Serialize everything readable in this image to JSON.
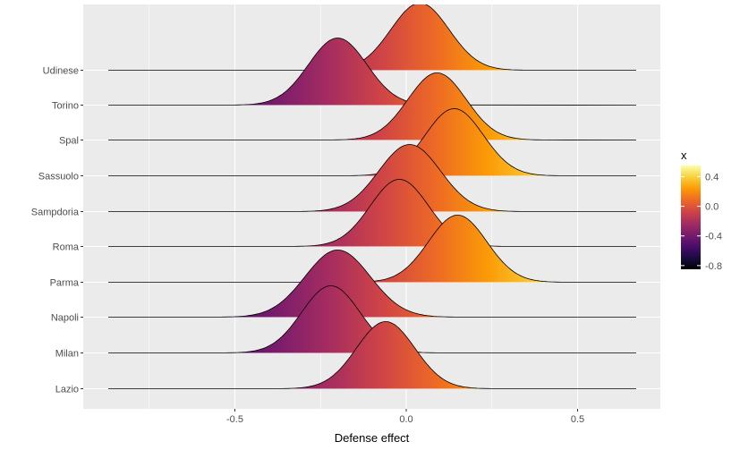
{
  "chart_data": {
    "type": "ridgeline",
    "xlabel": "Defense effect",
    "ylabel": "",
    "xlim": [
      -0.95,
      0.75
    ],
    "x_ticks": [
      -0.5,
      0.0,
      0.5
    ],
    "x_tick_labels": [
      "-0.5",
      "0.0",
      "0.5"
    ],
    "grid": true,
    "legend": {
      "title": "x",
      "placement": "right",
      "range": [
        -0.85,
        0.55
      ],
      "ticks": [
        0.4,
        0.0,
        -0.4,
        -0.8
      ],
      "tick_labels": [
        "0.4",
        "0.0",
        "-0.4",
        "-0.8"
      ],
      "colormap": "inferno",
      "colors": [
        "#000004",
        "#1B0C41",
        "#4A0C6B",
        "#781C6D",
        "#A52C60",
        "#CF4446",
        "#ED6925",
        "#FB9B06",
        "#F7D13D",
        "#FCFFA4"
      ]
    },
    "series": [
      {
        "name": "Lazio",
        "mode": -0.06,
        "spread": 0.085,
        "xmin": -0.44,
        "xmax": 0.3
      },
      {
        "name": "Milan",
        "mode": -0.22,
        "spread": 0.085,
        "xmin": -0.64,
        "xmax": 0.13
      },
      {
        "name": "Napoli",
        "mode": -0.2,
        "spread": 0.095,
        "xmin": -0.69,
        "xmax": 0.2
      },
      {
        "name": "Parma",
        "mode": 0.15,
        "spread": 0.085,
        "xmin": -0.16,
        "xmax": 0.5
      },
      {
        "name": "Roma",
        "mode": -0.02,
        "spread": 0.085,
        "xmin": -0.37,
        "xmax": 0.32
      },
      {
        "name": "Sampdoria",
        "mode": 0.01,
        "spread": 0.09,
        "xmin": -0.38,
        "xmax": 0.41
      },
      {
        "name": "Sassuolo",
        "mode": 0.14,
        "spread": 0.085,
        "xmin": -0.22,
        "xmax": 0.49
      },
      {
        "name": "Spal",
        "mode": 0.09,
        "spread": 0.085,
        "xmin": -0.28,
        "xmax": 0.4
      },
      {
        "name": "Torino",
        "mode": -0.2,
        "spread": 0.085,
        "xmin": -0.65,
        "xmax": 0.09
      },
      {
        "name": "Udinese",
        "mode": 0.04,
        "spread": 0.085,
        "xmin": -0.32,
        "xmax": 0.39
      }
    ]
  }
}
